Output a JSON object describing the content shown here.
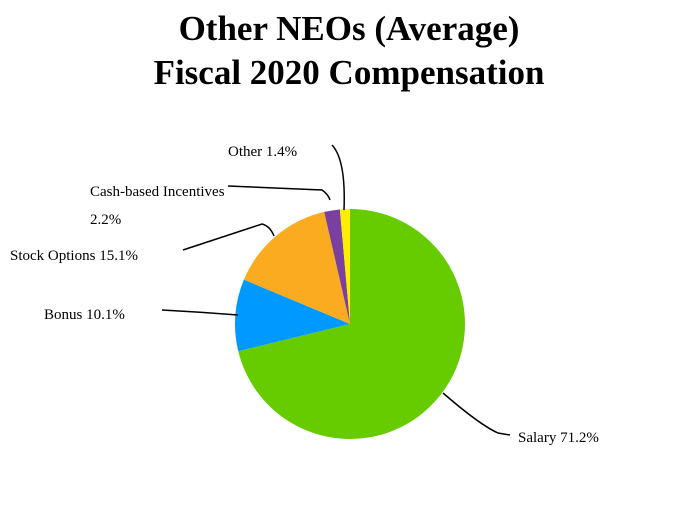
{
  "chart_data": {
    "type": "pie",
    "title": "Other NEOs (Average)",
    "subtitle": "Fiscal 2020 Compensation",
    "categories": [
      "Salary",
      "Bonus",
      "Stock Options",
      "Cash-based Incentives",
      "Other"
    ],
    "values": [
      71.2,
      10.1,
      15.1,
      2.2,
      1.4
    ],
    "value_labels": [
      "71.2%",
      "10.1%",
      "15.1%",
      "2.2%",
      "1.4%"
    ],
    "colors": [
      "#66cc00",
      "#0099ff",
      "#fbab1f",
      "#7b3fa0",
      "#ffee00"
    ]
  }
}
